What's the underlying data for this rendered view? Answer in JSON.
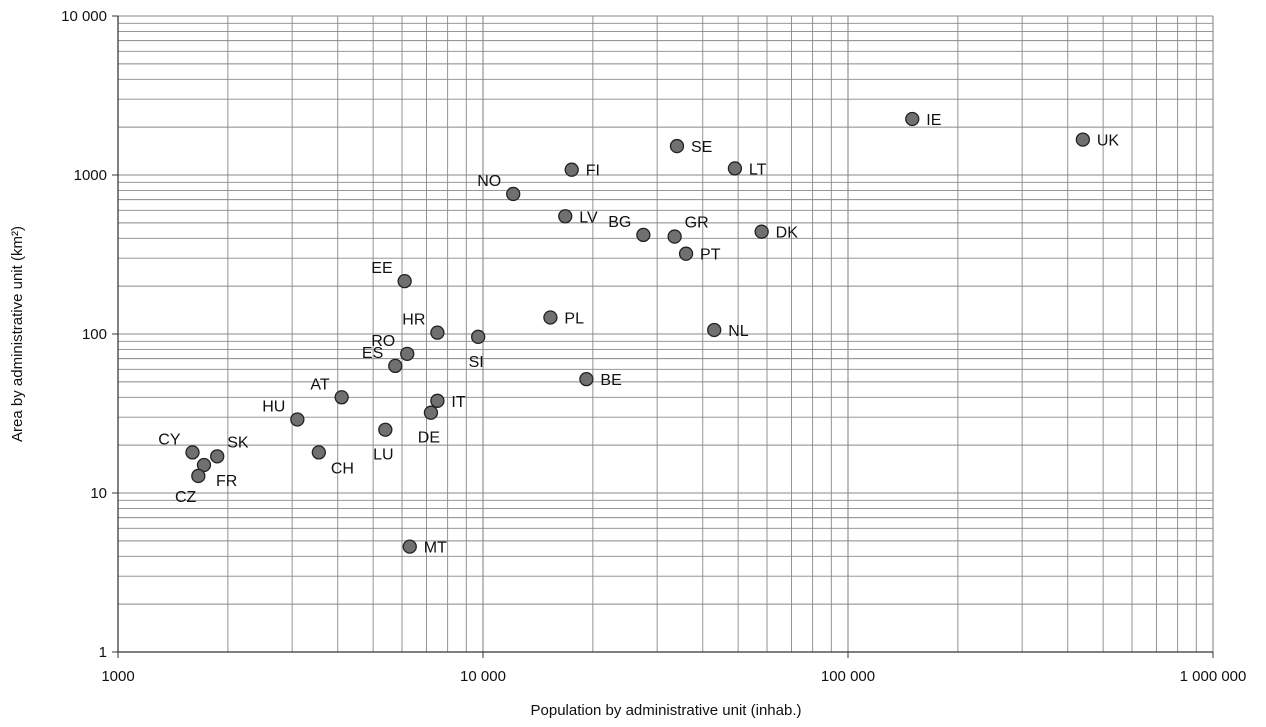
{
  "chart_data": {
    "type": "scatter",
    "title": "",
    "xlabel": "Population by administrative unit (inhab.)",
    "ylabel": "Area by administrative unit (km²)",
    "x_scale": "log",
    "y_scale": "log",
    "xlim": [
      1000,
      1000000
    ],
    "ylim": [
      1,
      10000
    ],
    "grid": true,
    "legend": "none",
    "marker_color": "#707070",
    "marker_stroke": "#222222",
    "x_ticks": [
      {
        "value": 1000,
        "label": "1000"
      },
      {
        "value": 10000,
        "label": "10 000"
      },
      {
        "value": 100000,
        "label": "100 000"
      },
      {
        "value": 1000000,
        "label": "1 000 000"
      }
    ],
    "y_ticks": [
      {
        "value": 1,
        "label": "1"
      },
      {
        "value": 10,
        "label": "10"
      },
      {
        "value": 100,
        "label": "100"
      },
      {
        "value": 1000,
        "label": "1000"
      },
      {
        "value": 10000,
        "label": "10 000"
      }
    ],
    "points": [
      {
        "label": "CY",
        "x": 1600,
        "y": 18,
        "label_pos": "upper-left"
      },
      {
        "label": "SK",
        "x": 1870,
        "y": 17,
        "label_pos": "upper-right"
      },
      {
        "label": "FR",
        "x": 1720,
        "y": 15,
        "label_pos": "lower-right"
      },
      {
        "label": "CZ",
        "x": 1660,
        "y": 12.8,
        "label_pos": "lower-left"
      },
      {
        "label": "HU",
        "x": 3100,
        "y": 29,
        "label_pos": "upper-left"
      },
      {
        "label": "CH",
        "x": 3550,
        "y": 18,
        "label_pos": "lower-right"
      },
      {
        "label": "AT",
        "x": 4100,
        "y": 40,
        "label_pos": "upper-left"
      },
      {
        "label": "LU",
        "x": 5400,
        "y": 25,
        "label_pos": "below"
      },
      {
        "label": "ES",
        "x": 5750,
        "y": 63,
        "label_pos": "upper-left"
      },
      {
        "label": "RO",
        "x": 6200,
        "y": 75,
        "label_pos": "upper-left"
      },
      {
        "label": "EE",
        "x": 6100,
        "y": 215,
        "label_pos": "upper-left"
      },
      {
        "label": "MT",
        "x": 6300,
        "y": 4.6,
        "label_pos": "right"
      },
      {
        "label": "DE",
        "x": 7200,
        "y": 32,
        "label_pos": "below"
      },
      {
        "label": "IT",
        "x": 7500,
        "y": 38,
        "label_pos": "right"
      },
      {
        "label": "HR",
        "x": 7500,
        "y": 102,
        "label_pos": "upper-left"
      },
      {
        "label": "SI",
        "x": 9700,
        "y": 96,
        "label_pos": "below"
      },
      {
        "label": "NO",
        "x": 12100,
        "y": 760,
        "label_pos": "upper-left"
      },
      {
        "label": "PL",
        "x": 15300,
        "y": 127,
        "label_pos": "right"
      },
      {
        "label": "LV",
        "x": 16800,
        "y": 550,
        "label_pos": "right"
      },
      {
        "label": "FI",
        "x": 17500,
        "y": 1080,
        "label_pos": "right"
      },
      {
        "label": "BE",
        "x": 19200,
        "y": 52,
        "label_pos": "right"
      },
      {
        "label": "BG",
        "x": 27500,
        "y": 420,
        "label_pos": "upper-left"
      },
      {
        "label": "GR",
        "x": 33500,
        "y": 410,
        "label_pos": "upper-right"
      },
      {
        "label": "SE",
        "x": 34000,
        "y": 1520,
        "label_pos": "right"
      },
      {
        "label": "PT",
        "x": 36000,
        "y": 320,
        "label_pos": "right"
      },
      {
        "label": "NL",
        "x": 43000,
        "y": 106,
        "label_pos": "right"
      },
      {
        "label": "LT",
        "x": 49000,
        "y": 1100,
        "label_pos": "right"
      },
      {
        "label": "DK",
        "x": 58000,
        "y": 440,
        "label_pos": "right"
      },
      {
        "label": "IE",
        "x": 150000,
        "y": 2250,
        "label_pos": "right"
      },
      {
        "label": "UK",
        "x": 440000,
        "y": 1670,
        "label_pos": "right"
      }
    ]
  }
}
